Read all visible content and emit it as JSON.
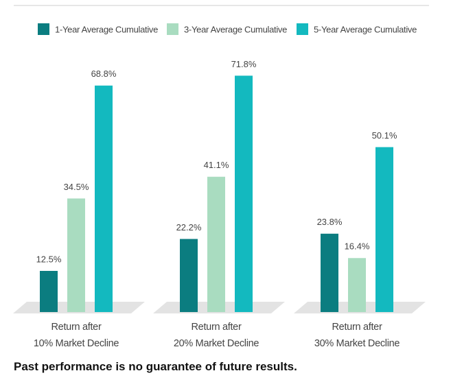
{
  "chart_data": {
    "type": "bar",
    "categories": [
      "Return after\n10% Market Decline",
      "Return after\n20% Market Decline",
      "Return after\n30% Market Decline"
    ],
    "series": [
      {
        "name": "1-Year Average Cumulative",
        "color": "#0b7d80",
        "values": [
          12.5,
          22.2,
          23.8
        ],
        "value_labels": [
          "12.5%",
          "22.2%",
          "23.8%"
        ]
      },
      {
        "name": "3-Year Average Cumulative",
        "color": "#a9dcc0",
        "values": [
          34.5,
          41.1,
          16.4
        ],
        "value_labels": [
          "34.5%",
          "41.1%",
          "16.4%"
        ]
      },
      {
        "name": "5-Year Average Cumulative",
        "color": "#13b9bf",
        "values": [
          68.8,
          71.8,
          50.1
        ],
        "value_labels": [
          "68.8%",
          "71.8%",
          "50.1%"
        ]
      }
    ],
    "footnote": "Past performance is no guarantee of future results."
  }
}
